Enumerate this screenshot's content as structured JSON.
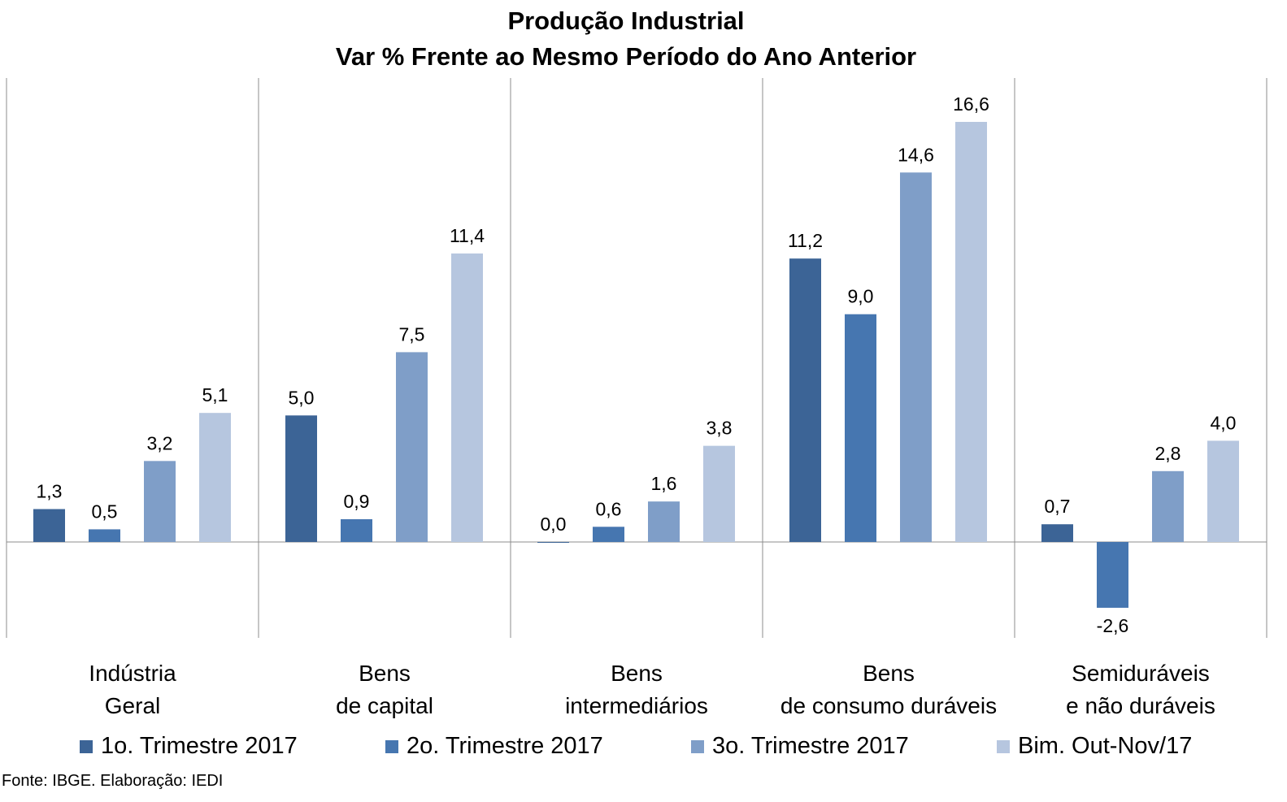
{
  "chart_data": {
    "type": "bar",
    "title": "Produção Industrial",
    "subtitle": "Var % Frente ao Mesmo Período do Ano Anterior",
    "categories": [
      [
        "Indústria",
        "Geral"
      ],
      [
        "Bens",
        "de capital"
      ],
      [
        "Bens",
        "intermediários"
      ],
      [
        "Bens",
        "de consumo duráveis"
      ],
      [
        "Semiduráveis",
        "e não duráveis"
      ]
    ],
    "series": [
      {
        "name": "1o. Trimestre 2017",
        "color": "#3c6496",
        "values": [
          1.3,
          5.0,
          0.0,
          11.2,
          0.7
        ],
        "labels": [
          "1,3",
          "5,0",
          "0,0",
          "11,2",
          "0,7"
        ]
      },
      {
        "name": "2o. Trimestre 2017",
        "color": "#4676b0",
        "values": [
          0.5,
          0.9,
          0.6,
          9.0,
          -2.6
        ],
        "labels": [
          "0,5",
          "0,9",
          "0,6",
          "9,0",
          "-2,6"
        ]
      },
      {
        "name": "3o. Trimestre 2017",
        "color": "#7f9ec8",
        "values": [
          3.2,
          7.5,
          1.6,
          14.6,
          2.8
        ],
        "labels": [
          "3,2",
          "7,5",
          "1,6",
          "14,6",
          "2,8"
        ]
      },
      {
        "name": "Bim. Out-Nov/17",
        "color": "#b6c6df",
        "values": [
          5.1,
          11.4,
          3.8,
          16.6,
          4.0
        ],
        "labels": [
          "5,1",
          "11,4",
          "3,8",
          "16,6",
          "4,0"
        ]
      }
    ],
    "xlabel": "",
    "ylabel": "",
    "ylim": [
      -3.8,
      18.4
    ],
    "grid": false,
    "legend": "bottom"
  },
  "source": "Fonte: IBGE. Elaboração: IEDI"
}
